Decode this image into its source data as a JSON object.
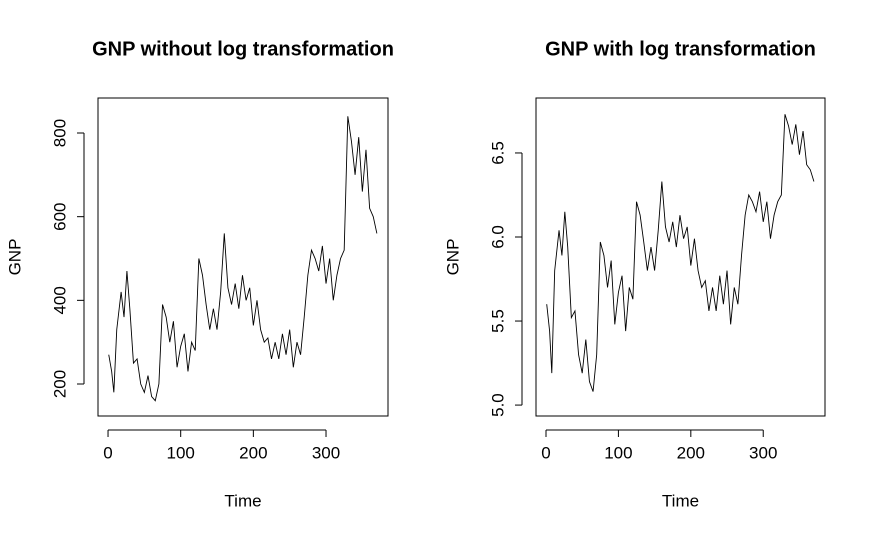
{
  "chart_data": [
    {
      "type": "line",
      "title": "GNP without log transformation",
      "x_label": "Time",
      "y_label": "GNP",
      "color": "#000000",
      "x": [
        1,
        5,
        8,
        12,
        18,
        22,
        26,
        30,
        35,
        40,
        45,
        50,
        55,
        60,
        65,
        70,
        75,
        80,
        85,
        90,
        95,
        100,
        105,
        110,
        115,
        120,
        125,
        130,
        135,
        140,
        145,
        150,
        155,
        160,
        165,
        170,
        175,
        180,
        185,
        190,
        195,
        200,
        205,
        210,
        215,
        220,
        225,
        230,
        235,
        240,
        245,
        250,
        255,
        260,
        265,
        270,
        275,
        280,
        285,
        290,
        295,
        300,
        305,
        310,
        315,
        320,
        325,
        330,
        335,
        340,
        345,
        350,
        355,
        360,
        365,
        370
      ],
      "values": [
        270,
        230,
        180,
        330,
        420,
        360,
        470,
        380,
        250,
        260,
        200,
        180,
        220,
        170,
        160,
        200,
        390,
        360,
        300,
        350,
        240,
        290,
        320,
        230,
        300,
        280,
        500,
        460,
        390,
        330,
        380,
        330,
        420,
        560,
        430,
        390,
        440,
        380,
        460,
        400,
        430,
        340,
        400,
        330,
        300,
        310,
        260,
        300,
        260,
        320,
        270,
        330,
        240,
        300,
        270,
        360,
        460,
        520,
        500,
        470,
        530,
        440,
        500,
        400,
        460,
        500,
        520,
        840,
        780,
        700,
        790,
        660,
        760,
        620,
        600,
        560
      ],
      "xlim": [
        -13.8,
        385.3
      ],
      "ylim": [
        123.5,
        883.7
      ],
      "xticks": [
        0,
        100,
        200,
        300
      ],
      "yticks": [
        200,
        400,
        600,
        800
      ]
    },
    {
      "type": "line",
      "title": "GNP with log transformation",
      "x_label": "Time",
      "y_label": "GNP",
      "color": "#000000",
      "x": [
        1,
        5,
        8,
        12,
        18,
        22,
        26,
        30,
        35,
        40,
        45,
        50,
        55,
        60,
        65,
        70,
        75,
        80,
        85,
        90,
        95,
        100,
        105,
        110,
        115,
        120,
        125,
        130,
        135,
        140,
        145,
        150,
        155,
        160,
        165,
        170,
        175,
        180,
        185,
        190,
        195,
        200,
        205,
        210,
        215,
        220,
        225,
        230,
        235,
        240,
        245,
        250,
        255,
        260,
        265,
        270,
        275,
        280,
        285,
        290,
        295,
        300,
        305,
        310,
        315,
        320,
        325,
        330,
        335,
        340,
        345,
        350,
        355,
        360,
        365,
        370
      ],
      "values": [
        5.6,
        5.44,
        5.19,
        5.8,
        6.04,
        5.89,
        6.15,
        5.94,
        5.52,
        5.56,
        5.3,
        5.19,
        5.39,
        5.14,
        5.08,
        5.3,
        5.97,
        5.89,
        5.7,
        5.86,
        5.48,
        5.67,
        5.77,
        5.44,
        5.7,
        5.63,
        6.21,
        6.13,
        5.97,
        5.8,
        5.94,
        5.8,
        6.04,
        6.33,
        6.06,
        5.97,
        6.09,
        5.94,
        6.13,
        5.99,
        6.06,
        5.83,
        5.99,
        5.8,
        5.7,
        5.74,
        5.56,
        5.7,
        5.56,
        5.77,
        5.6,
        5.8,
        5.48,
        5.7,
        5.6,
        5.89,
        6.13,
        6.25,
        6.21,
        6.15,
        6.27,
        6.09,
        6.21,
        5.99,
        6.13,
        6.21,
        6.25,
        6.73,
        6.66,
        6.55,
        6.67,
        6.49,
        6.63,
        6.43,
        6.4,
        6.33
      ],
      "xlim": [
        -13.8,
        385.3
      ],
      "ylim": [
        4.935,
        6.827
      ],
      "xticks": [
        0,
        100,
        200,
        300
      ],
      "yticks": [
        {
          "value": 5,
          "label": "5.0"
        },
        {
          "value": 5.5,
          "label": "5.5"
        },
        {
          "value": 6,
          "label": "6.0"
        },
        {
          "value": 6.5,
          "label": "6.5"
        }
      ]
    }
  ]
}
